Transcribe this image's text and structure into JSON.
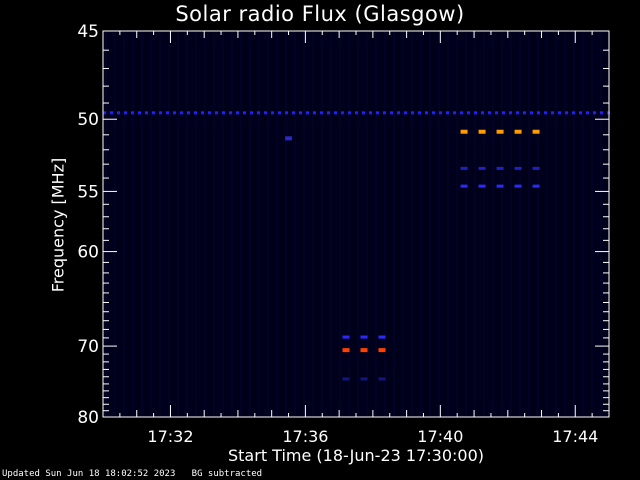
{
  "chart_data": {
    "type": "heatmap",
    "title": "Solar radio Flux (Glasgow)",
    "xlabel": "Start Time (18-Jun-23 17:30:00)",
    "ylabel": "Frequency [MHz]",
    "x_range_minutes": [
      0,
      15
    ],
    "x_ticks": [
      {
        "minute": 2,
        "label": "17:32"
      },
      {
        "minute": 6,
        "label": "17:36"
      },
      {
        "minute": 10,
        "label": "17:40"
      },
      {
        "minute": 14,
        "label": "17:44"
      }
    ],
    "ylim": [
      45,
      80
    ],
    "y_ticks": [
      45,
      50,
      55,
      60,
      70,
      80
    ],
    "y_scale": "reciprocal",
    "y_inverted": true,
    "background_color": "#00001a",
    "emission_segments": [
      {
        "freq_mhz": 49.6,
        "start_min": 0.0,
        "end_min": 15.0,
        "color": "#2020ff",
        "intensity": "continuous band"
      },
      {
        "freq_mhz": 51.2,
        "start_min": 5.4,
        "end_min": 5.6,
        "color": "#2a2ad0",
        "intensity": "spot"
      },
      {
        "freq_mhz": 50.8,
        "start_min": 10.6,
        "end_min": 13.1,
        "color": "#ff9a00",
        "intensity": "high"
      },
      {
        "freq_mhz": 53.3,
        "start_min": 10.6,
        "end_min": 13.1,
        "color": "#2020c8",
        "intensity": "low"
      },
      {
        "freq_mhz": 54.6,
        "start_min": 10.6,
        "end_min": 13.1,
        "color": "#2a2aff",
        "intensity": "medium"
      },
      {
        "freq_mhz": 68.9,
        "start_min": 7.1,
        "end_min": 8.7,
        "color": "#2a2aff",
        "intensity": "medium"
      },
      {
        "freq_mhz": 70.5,
        "start_min": 7.1,
        "end_min": 8.7,
        "color": "#ff4000",
        "intensity": "high"
      },
      {
        "freq_mhz": 74.3,
        "start_min": 7.1,
        "end_min": 8.7,
        "color": "#151580",
        "intensity": "faint"
      }
    ],
    "grid": false,
    "legend": "none"
  },
  "footer": {
    "updated": "Updated Sun Jun 18 18:02:52 2023   BG subtracted"
  }
}
